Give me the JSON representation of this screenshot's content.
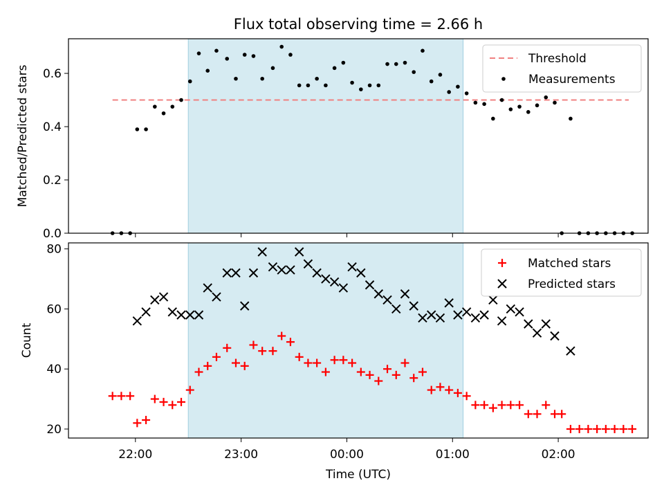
{
  "chart_data": [
    {
      "type": "scatter",
      "title": "Flux total observing time = 2.66 h",
      "xlabel": "",
      "ylabel": "Matched/Predicted stars",
      "ylim": [
        0,
        0.73
      ],
      "yticks": [
        "0.0",
        "0.2",
        "0.4",
        "0.6"
      ],
      "ytick_values": [
        0,
        0.2,
        0.4,
        0.6
      ],
      "shaded_region": [
        "22:30",
        "01:06"
      ],
      "shaded_color": "#add8e6",
      "threshold": {
        "name": "Threshold",
        "value": 0.5,
        "x_start": "21:47",
        "x_end": "02:40",
        "color": "#f08080",
        "style": "dashed"
      },
      "legend_position": "top-right",
      "series": [
        {
          "name": "Measurements",
          "color": "#000000",
          "marker": "dot",
          "x": [
            "21:47",
            "21:52",
            "21:57",
            "22:01",
            "22:06",
            "22:11",
            "22:16",
            "22:21",
            "22:26",
            "22:31",
            "22:36",
            "22:41",
            "22:46",
            "22:52",
            "22:57",
            "23:02",
            "23:07",
            "23:12",
            "23:18",
            "23:23",
            "23:28",
            "23:33",
            "23:38",
            "23:43",
            "23:48",
            "23:53",
            "23:58",
            "00:03",
            "00:08",
            "00:13",
            "00:18",
            "00:23",
            "00:28",
            "00:33",
            "00:38",
            "00:43",
            "00:48",
            "00:53",
            "00:58",
            "01:03",
            "01:08",
            "01:13",
            "01:18",
            "01:23",
            "01:28",
            "01:33",
            "01:38",
            "01:43",
            "01:48",
            "01:53",
            "01:58",
            "02:02",
            "02:07",
            "02:12",
            "02:17",
            "02:22",
            "02:27",
            "02:32",
            "02:37",
            "02:42"
          ],
          "y": [
            0,
            0,
            0,
            0.39,
            0.39,
            0.475,
            0.45,
            0.475,
            0.5,
            0.57,
            0.675,
            0.61,
            0.685,
            0.655,
            0.58,
            0.67,
            0.665,
            0.58,
            0.62,
            0.7,
            0.67,
            0.555,
            0.555,
            0.58,
            0.555,
            0.62,
            0.64,
            0.565,
            0.54,
            0.555,
            0.555,
            0.635,
            0.635,
            0.64,
            0.605,
            0.685,
            0.57,
            0.595,
            0.53,
            0.55,
            0.525,
            0.49,
            0.485,
            0.43,
            0.5,
            0.465,
            0.475,
            0.455,
            0.48,
            0.51,
            0.49,
            0,
            0.43,
            0,
            0,
            0,
            0,
            0,
            0,
            0
          ]
        }
      ]
    },
    {
      "type": "scatter",
      "title": "",
      "xlabel": "Time (UTC)",
      "ylabel": "Count",
      "ylim": [
        17,
        82
      ],
      "yticks": [
        "20",
        "40",
        "60",
        "80"
      ],
      "ytick_values": [
        20,
        40,
        60,
        80
      ],
      "xticks": [
        "22:00",
        "23:00",
        "00:00",
        "01:00",
        "02:00"
      ],
      "shaded_region": [
        "22:30",
        "01:06"
      ],
      "legend_position": "top-right",
      "series": [
        {
          "name": "Matched stars",
          "color": "#ff0000",
          "marker": "plus",
          "x": [
            "21:47",
            "21:52",
            "21:57",
            "22:01",
            "22:06",
            "22:11",
            "22:16",
            "22:21",
            "22:26",
            "22:31",
            "22:36",
            "22:41",
            "22:46",
            "22:52",
            "22:57",
            "23:02",
            "23:07",
            "23:12",
            "23:18",
            "23:23",
            "23:28",
            "23:33",
            "23:38",
            "23:43",
            "23:48",
            "23:53",
            "23:58",
            "00:03",
            "00:08",
            "00:13",
            "00:18",
            "00:23",
            "00:28",
            "00:33",
            "00:38",
            "00:43",
            "00:48",
            "00:53",
            "00:58",
            "01:03",
            "01:08",
            "01:13",
            "01:18",
            "01:23",
            "01:28",
            "01:33",
            "01:38",
            "01:43",
            "01:48",
            "01:53",
            "01:58",
            "02:02",
            "02:07",
            "02:12",
            "02:17",
            "02:22",
            "02:27",
            "02:32",
            "02:37",
            "02:42"
          ],
          "y": [
            31,
            31,
            31,
            22,
            23,
            30,
            29,
            28,
            29,
            33,
            39,
            41,
            44,
            47,
            42,
            41,
            48,
            46,
            46,
            51,
            49,
            44,
            42,
            42,
            39,
            43,
            43,
            42,
            39,
            38,
            36,
            40,
            38,
            42,
            37,
            39,
            33,
            34,
            33,
            32,
            31,
            28,
            28,
            27,
            28,
            28,
            28,
            25,
            25,
            28,
            25,
            25,
            20,
            20,
            20,
            20,
            20,
            20,
            20,
            20
          ]
        },
        {
          "name": "Predicted stars",
          "color": "#000000",
          "marker": "x",
          "x": [
            "22:01",
            "22:06",
            "22:11",
            "22:16",
            "22:21",
            "22:26",
            "22:31",
            "22:36",
            "22:41",
            "22:46",
            "22:52",
            "22:57",
            "23:02",
            "23:07",
            "23:12",
            "23:18",
            "23:23",
            "23:28",
            "23:33",
            "23:38",
            "23:43",
            "23:48",
            "23:53",
            "23:58",
            "00:03",
            "00:08",
            "00:13",
            "00:18",
            "00:23",
            "00:28",
            "00:33",
            "00:38",
            "00:43",
            "00:48",
            "00:53",
            "00:58",
            "01:03",
            "01:08",
            "01:13",
            "01:18",
            "01:23",
            "01:28",
            "01:33",
            "01:38",
            "01:43",
            "01:48",
            "01:53",
            "01:58",
            "02:07"
          ],
          "y": [
            56,
            59,
            63,
            64,
            59,
            58,
            58,
            58,
            67,
            64,
            72,
            72,
            61,
            72,
            79,
            74,
            73,
            73,
            79,
            75,
            72,
            70,
            69,
            67,
            74,
            72,
            68,
            65,
            63,
            60,
            65,
            61,
            57,
            58,
            57,
            62,
            58,
            59,
            57,
            58,
            63,
            56,
            60,
            59,
            55,
            52,
            55,
            51,
            46
          ]
        }
      ]
    }
  ]
}
